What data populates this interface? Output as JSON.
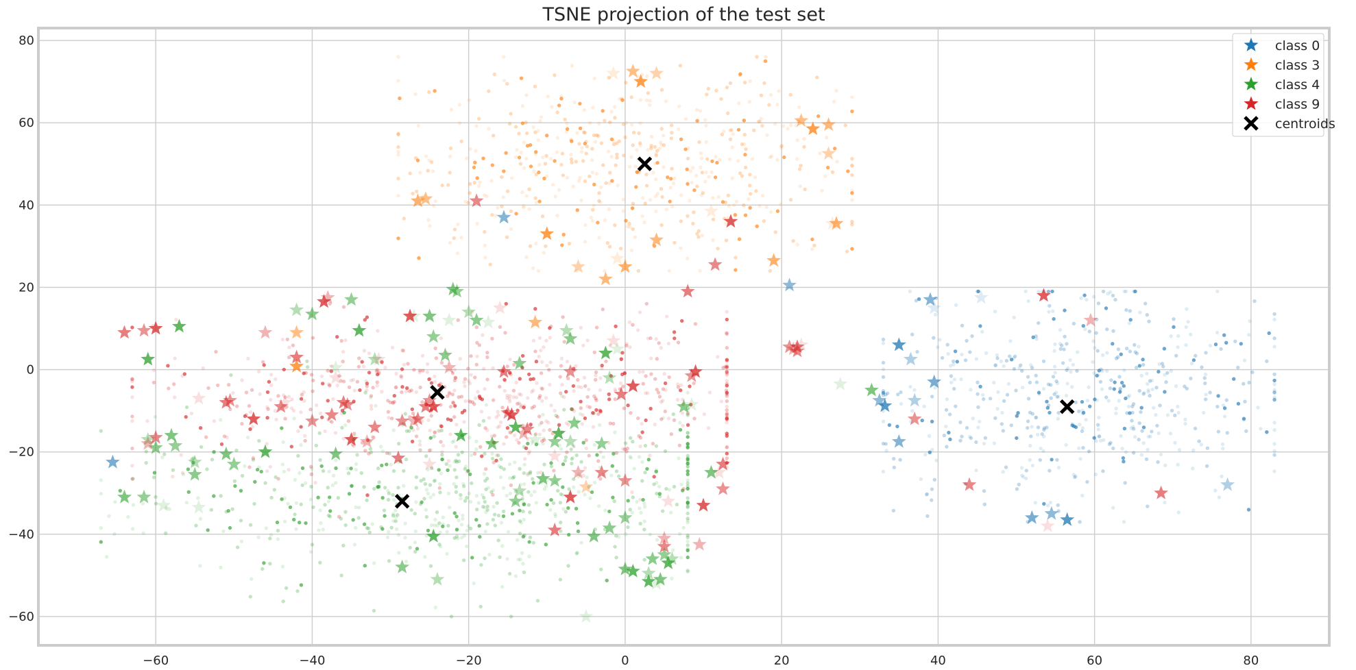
{
  "chart_data": {
    "type": "scatter",
    "title": "TSNE projection of the test set",
    "xlabel": "",
    "ylabel": "",
    "xlim": [
      -75,
      90
    ],
    "ylim": [
      -67,
      83
    ],
    "xticks": [
      -60,
      -40,
      -20,
      0,
      20,
      40,
      60,
      80
    ],
    "yticks": [
      -60,
      -40,
      -20,
      0,
      20,
      40,
      60,
      80
    ],
    "grid": true,
    "legend_position": "top-right",
    "legend": [
      {
        "label": "class 0",
        "marker": "star",
        "color": "#1f77b4"
      },
      {
        "label": "class 3",
        "marker": "star",
        "color": "#ff7f0e"
      },
      {
        "label": "class 4",
        "marker": "star",
        "color": "#2ca02c"
      },
      {
        "label": "class 9",
        "marker": "star",
        "color": "#d62728"
      },
      {
        "label": "centroids",
        "marker": "x",
        "color": "#000000"
      }
    ],
    "clusters": [
      {
        "name": "class 0",
        "color": "#1f77b4",
        "center": [
          58,
          -5
        ],
        "spread": [
          13,
          13
        ],
        "x_range": [
          33,
          83
        ],
        "y_range": [
          -37,
          19
        ],
        "dots": 560
      },
      {
        "name": "class 3",
        "color": "#ff7f0e",
        "center": [
          1,
          50
        ],
        "spread": [
          15,
          12
        ],
        "x_range": [
          -29,
          29
        ],
        "y_range": [
          24,
          76
        ],
        "dots": 560
      },
      {
        "name": "class 4",
        "color": "#2ca02c",
        "center": [
          -22,
          -30
        ],
        "spread": [
          20,
          10
        ],
        "x_range": [
          -67,
          8
        ],
        "y_range": [
          -60,
          22
        ],
        "dots": 700
      },
      {
        "name": "class 9",
        "color": "#d62728",
        "center": [
          -20,
          -6
        ],
        "spread": [
          20,
          9
        ],
        "x_range": [
          -63,
          13
        ],
        "y_range": [
          -42,
          16
        ],
        "dots": 700
      }
    ],
    "stars": {
      "class 0": [
        [
          -65.5,
          -22.5
        ],
        [
          21,
          20.5
        ],
        [
          35,
          6
        ],
        [
          36.5,
          2.5
        ],
        [
          39,
          17
        ],
        [
          39.5,
          15
        ],
        [
          39.5,
          -3
        ],
        [
          32.5,
          -7.5
        ],
        [
          33.2,
          -8.8
        ],
        [
          37,
          -7.5
        ],
        [
          35,
          -17.5
        ],
        [
          45.5,
          17.5
        ],
        [
          52,
          -36
        ],
        [
          54.5,
          -35
        ],
        [
          56.5,
          -36.5
        ],
        [
          77,
          -28
        ],
        [
          -15.5,
          37
        ]
      ],
      "class 3": [
        [
          -26.5,
          41
        ],
        [
          -25.5,
          41.5
        ],
        [
          -10,
          33
        ],
        [
          -6,
          25
        ],
        [
          -2.5,
          22
        ],
        [
          -1,
          27
        ],
        [
          0,
          25
        ],
        [
          1,
          72.5
        ],
        [
          2,
          70
        ],
        [
          4,
          72
        ],
        [
          4,
          31.5
        ],
        [
          11,
          38.5
        ],
        [
          19,
          26.5
        ],
        [
          22.5,
          60.5
        ],
        [
          24,
          58.5
        ],
        [
          26,
          52.5
        ],
        [
          26,
          59.5
        ],
        [
          26.5,
          35.5
        ],
        [
          27,
          35.5
        ],
        [
          -42,
          9
        ],
        [
          -42,
          0.8
        ],
        [
          -5,
          -28.5
        ],
        [
          -11.5,
          11.5
        ],
        [
          -1.5,
          72
        ]
      ],
      "class 4": [
        [
          -64,
          -31
        ],
        [
          -61.5,
          -31
        ],
        [
          -61,
          2.5
        ],
        [
          -61,
          -17
        ],
        [
          -60,
          -19
        ],
        [
          -59,
          -33
        ],
        [
          -58,
          -16
        ],
        [
          -57.5,
          -18.5
        ],
        [
          -57,
          10.5
        ],
        [
          -55,
          -22.5
        ],
        [
          -55,
          -25.5
        ],
        [
          -54.5,
          -33.5
        ],
        [
          -51,
          -20.5
        ],
        [
          -50,
          -23
        ],
        [
          -46,
          -20
        ],
        [
          -42,
          14.5
        ],
        [
          -40,
          13.5
        ],
        [
          -37,
          0.5
        ],
        [
          -37,
          -20.5
        ],
        [
          -35,
          17
        ],
        [
          -34,
          9.5
        ],
        [
          -32,
          2.5
        ],
        [
          -28.5,
          -48
        ],
        [
          -27,
          13
        ],
        [
          -25,
          13
        ],
        [
          -24.5,
          8
        ],
        [
          -24.5,
          -40.5
        ],
        [
          -24,
          -51
        ],
        [
          -23,
          3.5
        ],
        [
          -22.5,
          12
        ],
        [
          -22,
          19.5
        ],
        [
          -21.5,
          19
        ],
        [
          -21,
          -16
        ],
        [
          -20,
          14
        ],
        [
          -19,
          12
        ],
        [
          -17.5,
          11.5
        ],
        [
          -17,
          -18
        ],
        [
          -14,
          -32
        ],
        [
          -14,
          -14
        ],
        [
          -13.5,
          -29.5
        ],
        [
          -13.5,
          1.5
        ],
        [
          -11.5,
          -17
        ],
        [
          -10.5,
          -26.5
        ],
        [
          -9,
          -17.5
        ],
        [
          -8.5,
          -15.5
        ],
        [
          -7,
          -17.5
        ],
        [
          -6.5,
          -13
        ],
        [
          -5,
          -60
        ],
        [
          -4,
          -40.5
        ],
        [
          -3,
          -18
        ],
        [
          -2.5,
          4
        ],
        [
          -2,
          -2
        ],
        [
          -2,
          -38.5
        ],
        [
          -1,
          5
        ],
        [
          0,
          -48.5
        ],
        [
          0,
          -36
        ],
        [
          1,
          -49
        ],
        [
          3,
          -49.5
        ],
        [
          3.5,
          -46
        ],
        [
          4,
          -52
        ],
        [
          4.5,
          -51
        ],
        [
          5,
          -45
        ],
        [
          5.5,
          -47
        ],
        [
          6,
          -46
        ],
        [
          7.5,
          -9
        ],
        [
          8.5,
          -8.5
        ],
        [
          11,
          -25
        ],
        [
          -9,
          -27
        ],
        [
          3,
          -51.5
        ],
        [
          -7.5,
          9.5
        ],
        [
          -7,
          7.5
        ],
        [
          27.5,
          -3.5
        ],
        [
          31.5,
          -5
        ]
      ],
      "class 9": [
        [
          -64,
          9
        ],
        [
          -61.5,
          9.5
        ],
        [
          -60,
          10
        ],
        [
          -61,
          -18
        ],
        [
          -60,
          -16.5
        ],
        [
          -54.5,
          -7
        ],
        [
          -51,
          -8
        ],
        [
          -50.5,
          -7.5
        ],
        [
          -47.5,
          -12
        ],
        [
          -46,
          9
        ],
        [
          -44,
          -9
        ],
        [
          -43.5,
          -8
        ],
        [
          -42,
          3
        ],
        [
          -40,
          -12.5
        ],
        [
          -38.5,
          16.5
        ],
        [
          -38,
          17.5
        ],
        [
          -37.5,
          -11
        ],
        [
          -37,
          -2
        ],
        [
          -36,
          -8
        ],
        [
          -35.5,
          -8.5
        ],
        [
          -35,
          -17
        ],
        [
          -33,
          -17.5
        ],
        [
          -32,
          -14
        ],
        [
          -31.5,
          2.5
        ],
        [
          -29,
          -21.5
        ],
        [
          -28.5,
          -12.5
        ],
        [
          -27.5,
          13
        ],
        [
          -27,
          -12.5
        ],
        [
          -26.5,
          -12
        ],
        [
          -25,
          -23
        ],
        [
          -25.5,
          -9
        ],
        [
          -25,
          -7.5
        ],
        [
          -24.5,
          -9
        ],
        [
          -22.5,
          0.5
        ],
        [
          -19,
          41
        ],
        [
          -16,
          15
        ],
        [
          -15.5,
          -0.5
        ],
        [
          -15,
          -10.5
        ],
        [
          -14.5,
          -11
        ],
        [
          -13,
          -15.5
        ],
        [
          -12.5,
          -14.5
        ],
        [
          -9,
          -21
        ],
        [
          -9,
          -39
        ],
        [
          -7,
          -0.5
        ],
        [
          -7,
          -31
        ],
        [
          -6,
          -25
        ],
        [
          -3,
          -25
        ],
        [
          -1.5,
          7
        ],
        [
          -0.5,
          -6
        ],
        [
          0,
          -27
        ],
        [
          1,
          -4
        ],
        [
          5,
          -41
        ],
        [
          5,
          -43
        ],
        [
          5.5,
          -32
        ],
        [
          8,
          19
        ],
        [
          8.5,
          -1.5
        ],
        [
          9,
          -0.5
        ],
        [
          9.5,
          -42.5
        ],
        [
          11.5,
          25.5
        ],
        [
          12,
          -25
        ],
        [
          12.5,
          -23
        ],
        [
          12.5,
          -29
        ],
        [
          13.5,
          36
        ],
        [
          21.5,
          5
        ],
        [
          22,
          4.5
        ],
        [
          22.5,
          6
        ],
        [
          22,
          5.5
        ],
        [
          37,
          -12
        ],
        [
          53.5,
          18
        ],
        [
          59.5,
          12
        ],
        [
          44,
          -28
        ],
        [
          54,
          -38
        ],
        [
          68.5,
          -30
        ],
        [
          21,
          5.5
        ],
        [
          10,
          -33
        ]
      ]
    },
    "centroids": [
      [
        2.5,
        50
      ],
      [
        -24,
        -5.5
      ],
      [
        -28.5,
        -32
      ],
      [
        56.5,
        -9
      ]
    ]
  }
}
